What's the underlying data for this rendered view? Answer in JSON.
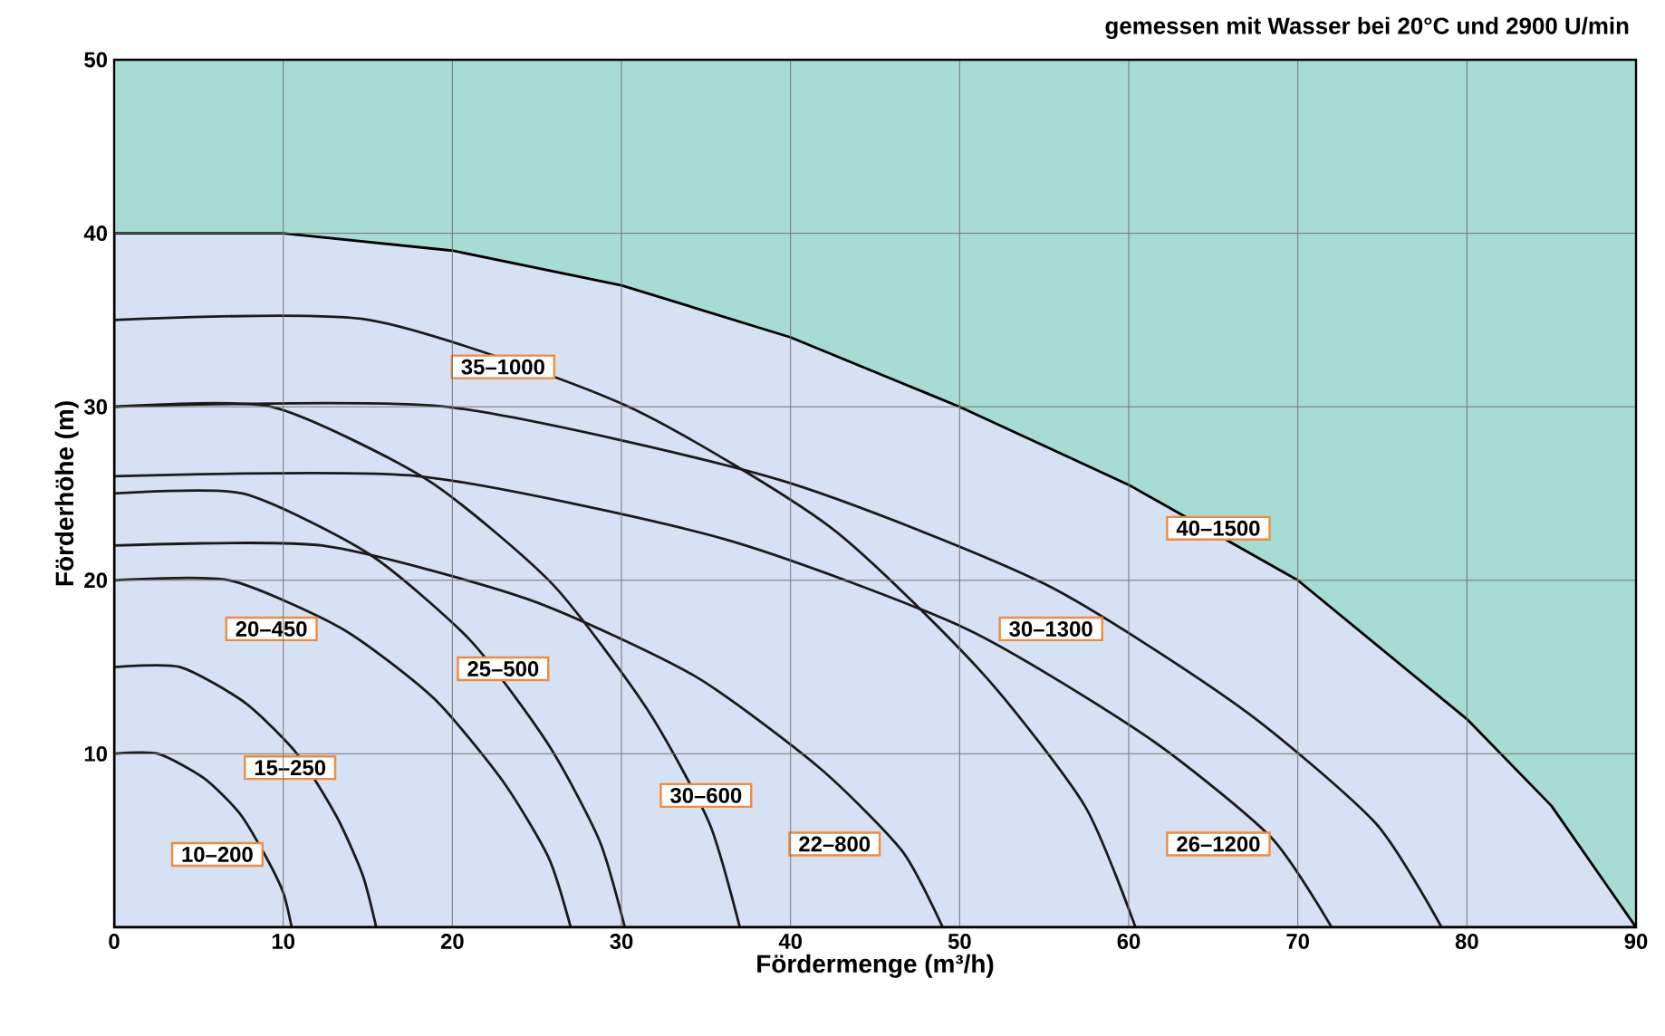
{
  "chart_data": {
    "type": "line",
    "title": "gemessen mit Wasser bei 20°C und 2900 U/min",
    "xlabel": "Fördermenge (m³/h)",
    "ylabel": "Förderhöhe (m)",
    "xlim": [
      0,
      90
    ],
    "ylim": [
      0,
      50
    ],
    "xticks": [
      0,
      10,
      20,
      30,
      40,
      50,
      60,
      70,
      80,
      90
    ],
    "yticks": [
      {
        "value": 0,
        "label": null
      },
      10,
      20,
      30,
      40,
      50
    ],
    "grid": true,
    "legend": false,
    "bands": [
      {
        "axis": "y",
        "from": 0,
        "to": 50,
        "color": "#a6dcd4"
      }
    ],
    "marker": "none",
    "line_style": "solid",
    "series": [
      {
        "name": "40–1500",
        "type": "area",
        "color": "#d6e2f4",
        "x": [
          0,
          10,
          20,
          30,
          40,
          50,
          60,
          70,
          80,
          85,
          90
        ],
        "values": [
          40,
          40,
          39,
          37,
          34,
          30,
          25.5,
          20,
          12,
          7,
          0
        ]
      },
      {
        "name": "10–200",
        "color": "#1a1a1a",
        "x": [
          0,
          2.6,
          5.3,
          7.4,
          8.9,
          10,
          10.5
        ],
        "values": [
          10,
          10,
          8.6,
          6.6,
          4.2,
          2,
          0
        ]
      },
      {
        "name": "15–250",
        "color": "#1a1a1a",
        "x": [
          0,
          3.9,
          7.8,
          10.9,
          13.2,
          14.7,
          15.5
        ],
        "values": [
          15,
          15,
          12.9,
          9.9,
          6.3,
          3,
          0
        ]
      },
      {
        "name": "20–450",
        "color": "#1a1a1a",
        "x": [
          0,
          6.8,
          13.5,
          18.9,
          23,
          25.7,
          27
        ],
        "values": [
          20,
          20,
          17.2,
          13.2,
          8.4,
          4,
          0
        ]
      },
      {
        "name": "25–500",
        "color": "#1a1a1a",
        "x": [
          0,
          7.6,
          15.1,
          21.1,
          25.7,
          28.7,
          30.2
        ],
        "values": [
          25,
          25,
          21.5,
          16.5,
          10.5,
          5,
          0
        ]
      },
      {
        "name": "30–600",
        "color": "#1a1a1a",
        "x": [
          0,
          9.3,
          18.5,
          25.9,
          31.5,
          35.2,
          37
        ],
        "values": [
          30,
          30,
          25.8,
          19.8,
          12.6,
          6,
          0
        ]
      },
      {
        "name": "22–800",
        "color": "#1a1a1a",
        "x": [
          0,
          12.3,
          24.5,
          34.3,
          41.7,
          46.6,
          49
        ],
        "values": [
          22,
          22,
          18.9,
          14.5,
          9.2,
          4.4,
          0
        ]
      },
      {
        "name": "35–1000",
        "color": "#1a1a1a",
        "x": [
          0,
          15.1,
          30.2,
          42.3,
          51.3,
          57.4,
          60.4
        ],
        "values": [
          35,
          35,
          30.1,
          23.1,
          14.7,
          7,
          0
        ]
      },
      {
        "name": "26–1200",
        "color": "#1a1a1a",
        "x": [
          0,
          18,
          36,
          50.4,
          61.2,
          68.4,
          72
        ],
        "values": [
          26,
          26,
          22.4,
          17.2,
          10.9,
          5.2,
          0
        ]
      },
      {
        "name": "30–1300",
        "color": "#1a1a1a",
        "x": [
          0,
          19.6,
          39.3,
          55,
          66.7,
          74.6,
          78.5
        ],
        "values": [
          30,
          30,
          25.8,
          19.8,
          12.6,
          6,
          0
        ]
      }
    ]
  }
}
